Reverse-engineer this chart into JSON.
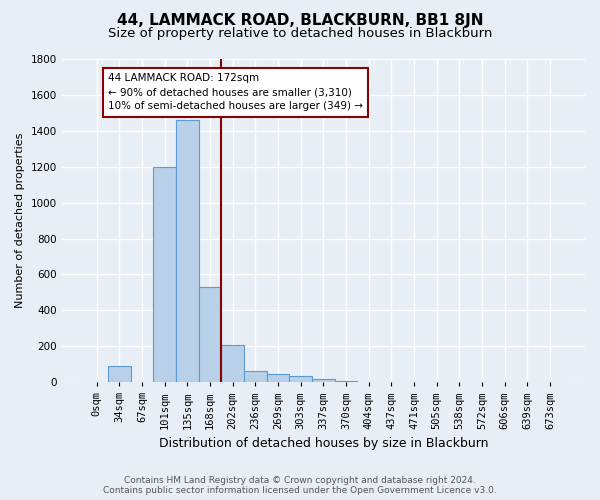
{
  "title": "44, LAMMACK ROAD, BLACKBURN, BB1 8JN",
  "subtitle": "Size of property relative to detached houses in Blackburn",
  "xlabel": "Distribution of detached houses by size in Blackburn",
  "ylabel": "Number of detached properties",
  "bar_labels": [
    "0sqm",
    "34sqm",
    "67sqm",
    "101sqm",
    "135sqm",
    "168sqm",
    "202sqm",
    "236sqm",
    "269sqm",
    "303sqm",
    "337sqm",
    "370sqm",
    "404sqm",
    "437sqm",
    "471sqm",
    "505sqm",
    "538sqm",
    "572sqm",
    "606sqm",
    "639sqm",
    "673sqm"
  ],
  "bar_values": [
    0,
    90,
    0,
    1200,
    1460,
    530,
    205,
    60,
    48,
    32,
    20,
    7,
    2,
    0,
    0,
    0,
    0,
    0,
    0,
    0,
    0
  ],
  "bar_color": "#b8d0e8",
  "bar_edge_color": "#5b9bd5",
  "vline_x_label": "168sqm",
  "vline_color": "#8b0000",
  "annotation_text": "44 LAMMACK ROAD: 172sqm\n← 90% of detached houses are smaller (3,310)\n10% of semi-detached houses are larger (349) →",
  "annotation_box_facecolor": "white",
  "annotation_box_edgecolor": "#8b0000",
  "ylim": [
    0,
    1800
  ],
  "yticks": [
    0,
    200,
    400,
    600,
    800,
    1000,
    1200,
    1400,
    1600,
    1800
  ],
  "bg_color": "#e8eef5",
  "plot_bg_color": "#e8eef5",
  "grid_color": "white",
  "title_fontsize": 11,
  "subtitle_fontsize": 9.5,
  "xlabel_fontsize": 9,
  "ylabel_fontsize": 8,
  "tick_fontsize": 7.5,
  "footer_fontsize": 6.5,
  "footer": "Contains HM Land Registry data © Crown copyright and database right 2024.\nContains public sector information licensed under the Open Government Licence v3.0."
}
